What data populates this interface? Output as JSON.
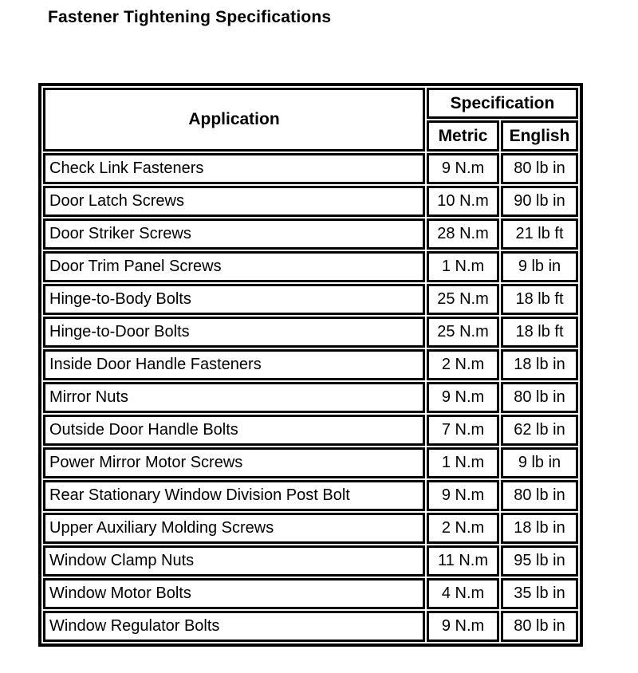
{
  "page_title": "Fastener Tightening Specifications",
  "colors": {
    "text": "#000000",
    "background": "#ffffff",
    "border": "#000000"
  },
  "table": {
    "header": {
      "application": "Application",
      "specification": "Specification",
      "metric": "Metric",
      "english": "English"
    },
    "rows": [
      {
        "application": "Check Link Fasteners",
        "metric": "9 N.m",
        "english": "80 lb in"
      },
      {
        "application": "Door Latch Screws",
        "metric": "10 N.m",
        "english": "90 lb in"
      },
      {
        "application": "Door Striker Screws",
        "metric": "28 N.m",
        "english": "21 lb ft"
      },
      {
        "application": "Door Trim Panel Screws",
        "metric": "1 N.m",
        "english": "9 lb in"
      },
      {
        "application": "Hinge-to-Body Bolts",
        "metric": "25 N.m",
        "english": "18 lb ft"
      },
      {
        "application": "Hinge-to-Door Bolts",
        "metric": "25 N.m",
        "english": "18 lb ft"
      },
      {
        "application": "Inside Door Handle Fasteners",
        "metric": "2 N.m",
        "english": "18 lb in"
      },
      {
        "application": "Mirror Nuts",
        "metric": "9 N.m",
        "english": "80 lb in"
      },
      {
        "application": "Outside Door Handle Bolts",
        "metric": "7 N.m",
        "english": "62 lb in"
      },
      {
        "application": "Power Mirror Motor Screws",
        "metric": "1 N.m",
        "english": "9 lb in"
      },
      {
        "application": "Rear Stationary Window Division Post Bolt",
        "metric": "9 N.m",
        "english": "80 lb in"
      },
      {
        "application": "Upper Auxiliary Molding Screws",
        "metric": "2 N.m",
        "english": "18 lb in"
      },
      {
        "application": "Window Clamp Nuts",
        "metric": "11 N.m",
        "english": "95 lb in"
      },
      {
        "application": "Window Motor Bolts",
        "metric": "4 N.m",
        "english": "35 lb in"
      },
      {
        "application": "Window Regulator Bolts",
        "metric": "9 N.m",
        "english": "80 lb in"
      }
    ]
  }
}
